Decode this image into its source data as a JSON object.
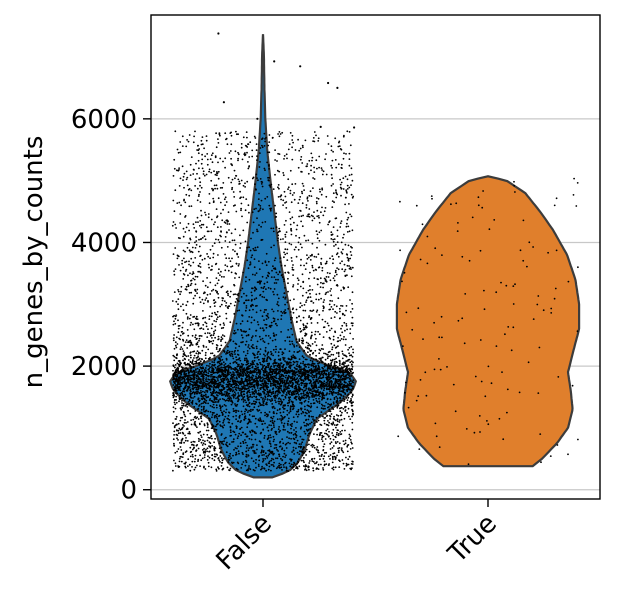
{
  "chart_data": {
    "type": "violin",
    "xlabel": "",
    "ylabel": "n_genes_by_counts",
    "categories": [
      "False",
      "True"
    ],
    "ylim": [
      -150,
      7680
    ],
    "yticks": [
      0,
      2000,
      4000,
      6000
    ],
    "ytick_labels": [
      "0",
      "2000",
      "4000",
      "6000"
    ],
    "grid": "horizontal",
    "xtick_rotation": -45,
    "series": [
      {
        "category": "False",
        "color": "#1f77b4",
        "min": 200,
        "max": 7370,
        "density_points": 6000,
        "profile": [
          [
            200,
            0.1
          ],
          [
            300,
            0.28
          ],
          [
            450,
            0.38
          ],
          [
            650,
            0.45
          ],
          [
            900,
            0.5
          ],
          [
            1150,
            0.58
          ],
          [
            1400,
            0.82
          ],
          [
            1600,
            0.96
          ],
          [
            1750,
            1.0
          ],
          [
            1900,
            0.93
          ],
          [
            2000,
            0.72
          ],
          [
            2150,
            0.48
          ],
          [
            2400,
            0.36
          ],
          [
            2800,
            0.3
          ],
          [
            3200,
            0.25
          ],
          [
            3600,
            0.2
          ],
          [
            4000,
            0.16
          ],
          [
            4500,
            0.12
          ],
          [
            5000,
            0.08
          ],
          [
            5500,
            0.045
          ],
          [
            6000,
            0.025
          ],
          [
            6500,
            0.015
          ],
          [
            7000,
            0.01
          ],
          [
            7370,
            0.0
          ]
        ]
      },
      {
        "category": "True",
        "color": "#e07f2c",
        "min": 380,
        "max": 5070,
        "density_points": 130,
        "profile": [
          [
            380,
            0.48
          ],
          [
            500,
            0.58
          ],
          [
            750,
            0.74
          ],
          [
            1000,
            0.86
          ],
          [
            1300,
            0.91
          ],
          [
            1600,
            0.89
          ],
          [
            1900,
            0.86
          ],
          [
            2200,
            0.91
          ],
          [
            2600,
            0.98
          ],
          [
            3000,
            0.98
          ],
          [
            3400,
            0.94
          ],
          [
            3800,
            0.85
          ],
          [
            4200,
            0.7
          ],
          [
            4500,
            0.56
          ],
          [
            4800,
            0.4
          ],
          [
            5000,
            0.2
          ],
          [
            5070,
            0.0
          ]
        ]
      }
    ],
    "outliers": [
      {
        "category": "False",
        "offset": -0.48,
        "y": 7380
      },
      {
        "category": "False",
        "offset": 0.12,
        "y": 6930
      },
      {
        "category": "False",
        "offset": 0.4,
        "y": 6850
      },
      {
        "category": "False",
        "offset": -0.42,
        "y": 6270
      },
      {
        "category": "False",
        "offset": 0.7,
        "y": 6580
      },
      {
        "category": "False",
        "offset": 0.8,
        "y": 6500
      },
      {
        "category": "False",
        "offset": -0.06,
        "y": 6000
      },
      {
        "category": "False",
        "offset": 0.62,
        "y": 5870
      },
      {
        "category": "False",
        "offset": 0.98,
        "y": 5860
      }
    ]
  }
}
